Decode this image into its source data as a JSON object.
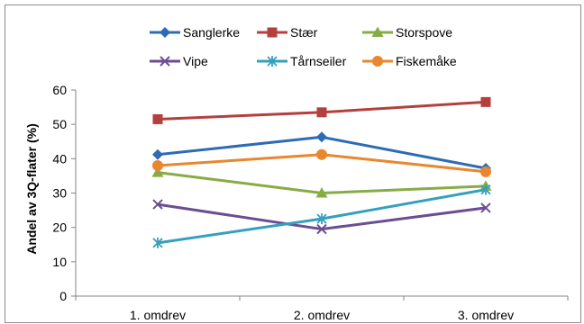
{
  "chart_data": {
    "type": "line",
    "ylabel": "Andel av 3Q-flater (%)",
    "xlabel": "",
    "categories": [
      "1. omdrev",
      "2. omdrev",
      "3. omdrev"
    ],
    "ylim": [
      0,
      60
    ],
    "yticks": [
      0,
      10,
      20,
      30,
      40,
      50,
      60
    ],
    "grid": false,
    "legend_position": "top",
    "series": [
      {
        "name": "Sanglerke",
        "color": "#2e6bb5",
        "marker": "diamond",
        "values": [
          41.2,
          46.3,
          37.2
        ]
      },
      {
        "name": "Stær",
        "color": "#b4403d",
        "marker": "square",
        "values": [
          51.5,
          53.5,
          56.5
        ]
      },
      {
        "name": "Storspove",
        "color": "#86ac45",
        "marker": "triangle",
        "values": [
          36.0,
          30.0,
          32.0
        ]
      },
      {
        "name": "Vipe",
        "color": "#6b4e92",
        "marker": "x",
        "values": [
          26.7,
          19.5,
          25.7
        ]
      },
      {
        "name": "Tårnseiler",
        "color": "#35a0bb",
        "marker": "star",
        "values": [
          15.5,
          22.5,
          31.0
        ]
      },
      {
        "name": "Fiskemåke",
        "color": "#e8872e",
        "marker": "circle",
        "values": [
          38.0,
          41.2,
          36.2
        ]
      }
    ]
  }
}
